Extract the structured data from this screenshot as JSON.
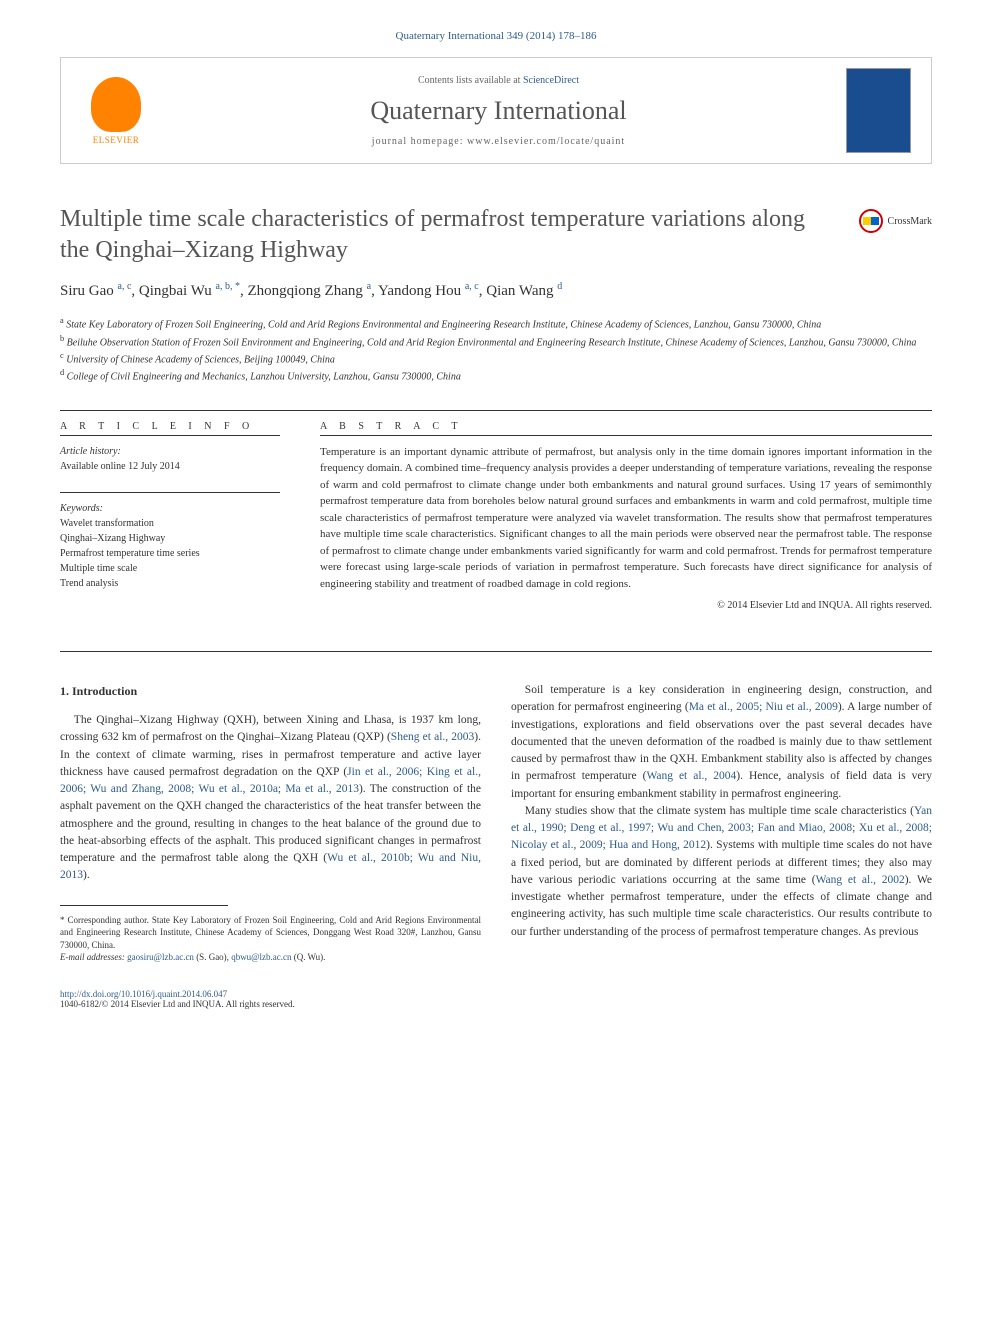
{
  "header_citation": "Quaternary International 349 (2014) 178–186",
  "banner": {
    "contents_prefix": "Contents lists available at ",
    "contents_link": "ScienceDirect",
    "journal_name": "Quaternary International",
    "homepage_prefix": "journal homepage: ",
    "homepage_url": "www.elsevier.com/locate/quaint",
    "publisher": "ELSEVIER"
  },
  "crossmark_label": "CrossMark",
  "title": "Multiple time scale characteristics of permafrost temperature variations along the Qinghai–Xizang Highway",
  "authors_html": "Siru Gao <sup>a, c</sup>, Qingbai Wu <sup>a, b, *</sup>, Zhongqiong Zhang <sup>a</sup>, Yandong Hou <sup>a, c</sup>, Qian Wang <sup>d</sup>",
  "affiliations": [
    "<sup>a</sup> State Key Laboratory of Frozen Soil Engineering, Cold and Arid Regions Environmental and Engineering Research Institute, Chinese Academy of Sciences, Lanzhou, Gansu 730000, China",
    "<sup>b</sup> Beiluhe Observation Station of Frozen Soil Environment and Engineering, Cold and Arid Region Environmental and Engineering Research Institute, Chinese Academy of Sciences, Lanzhou, Gansu 730000, China",
    "<sup>c</sup> University of Chinese Academy of Sciences, Beijing 100049, China",
    "<sup>d</sup> College of Civil Engineering and Mechanics, Lanzhou University, Lanzhou, Gansu 730000, China"
  ],
  "article_info": {
    "header": "A R T I C L E   I N F O",
    "history_label": "Article history:",
    "history_text": "Available online 12 July 2014",
    "keywords_label": "Keywords:",
    "keywords": [
      "Wavelet transformation",
      "Qinghai–Xizang Highway",
      "Permafrost temperature time series",
      "Multiple time scale",
      "Trend analysis"
    ]
  },
  "abstract": {
    "header": "A B S T R A C T",
    "text": "Temperature is an important dynamic attribute of permafrost, but analysis only in the time domain ignores important information in the frequency domain. A combined time–frequency analysis provides a deeper understanding of temperature variations, revealing the response of warm and cold permafrost to climate change under both embankments and natural ground surfaces. Using 17 years of semimonthly permafrost temperature data from boreholes below natural ground surfaces and embankments in warm and cold permafrost, multiple time scale characteristics of permafrost temperature were analyzed via wavelet transformation. The results show that permafrost temperatures have multiple time scale characteristics. Significant changes to all the main periods were observed near the permafrost table. The response of permafrost to climate change under embankments varied significantly for warm and cold permafrost. Trends for permafrost temperature were forecast using large-scale periods of variation in permafrost temperature. Such forecasts have direct significance for analysis of engineering stability and treatment of roadbed damage in cold regions.",
    "copyright": "© 2014 Elsevier Ltd and INQUA. All rights reserved."
  },
  "intro": {
    "heading": "1. Introduction",
    "col1_p1": "The Qinghai–Xizang Highway (QXH), between Xining and Lhasa, is 1937 km long, crossing 632 km of permafrost on the Qinghai–Xizang Plateau (QXP) (<span class=\"ref\">Sheng et al., 2003</span>). In the context of climate warming, rises in permafrost temperature and active layer thickness have caused permafrost degradation on the QXP (<span class=\"ref\">Jin et al., 2006; King et al., 2006; Wu and Zhang, 2008; Wu et al., 2010a; Ma et al., 2013</span>). The construction of the asphalt pavement on the QXH changed the characteristics of the heat transfer between the atmosphere and the ground, resulting in changes to the heat balance of the ground due to the heat-absorbing effects of the asphalt. This produced significant changes in permafrost temperature and the permafrost table along the QXH (<span class=\"ref\">Wu et al., 2010b; Wu and Niu, 2013</span>).",
    "col2_p1": "Soil temperature is a key consideration in engineering design, construction, and operation for permafrost engineering (<span class=\"ref\">Ma et al., 2005; Niu et al., 2009</span>). A large number of investigations, explorations and field observations over the past several decades have documented that the uneven deformation of the roadbed is mainly due to thaw settlement caused by permafrost thaw in the QXH. Embankment stability also is affected by changes in permafrost temperature (<span class=\"ref\">Wang et al., 2004</span>). Hence, analysis of field data is very important for ensuring embankment stability in permafrost engineering.",
    "col2_p2": "Many studies show that the climate system has multiple time scale characteristics (<span class=\"ref\">Yan et al., 1990; Deng et al., 1997; Wu and Chen, 2003; Fan and Miao, 2008; Xu et al., 2008; Nicolay et al., 2009; Hua and Hong, 2012</span>). Systems with multiple time scales do not have a fixed period, but are dominated by different periods at different times; they also may have various periodic variations occurring at the same time (<span class=\"ref\">Wang et al., 2002</span>). We investigate whether permafrost temperature, under the effects of climate change and engineering activity, has such multiple time scale characteristics. Our results contribute to our further understanding of the process of permafrost temperature changes. As previous"
  },
  "footnote": {
    "corresponding": "* Corresponding author. State Key Laboratory of Frozen Soil Engineering, Cold and Arid Regions Environmental and Engineering Research Institute, Chinese Academy of Sciences, Donggang West Road 320#, Lanzhou, Gansu 730000, China.",
    "emails_label": "E-mail addresses: ",
    "email1": "gaosiru@lzb.ac.cn",
    "email1_name": "(S. Gao), ",
    "email2": "qbwu@lzb.ac.cn",
    "email2_name": "(Q. Wu)."
  },
  "footer": {
    "doi": "http://dx.doi.org/10.1016/j.quaint.2014.06.047",
    "issn_line": "1040-6182/© 2014 Elsevier Ltd and INQUA. All rights reserved."
  },
  "colors": {
    "link": "#2e5c8a",
    "elsevier_orange": "#ff8200",
    "cover_blue": "#1a4d8f",
    "text": "#333333",
    "heading_gray": "#555555"
  }
}
